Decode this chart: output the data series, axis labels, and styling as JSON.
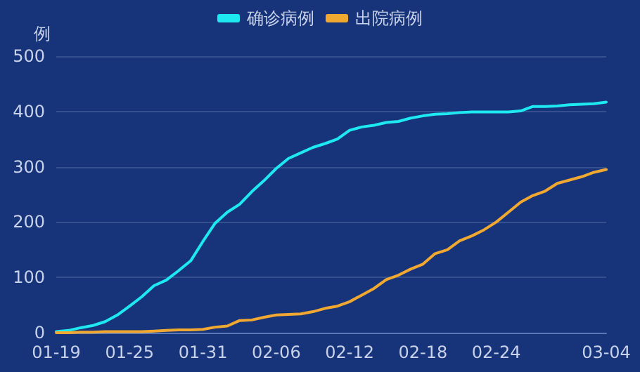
{
  "chart_data": {
    "type": "line",
    "ylabel": "例",
    "categories": [
      "01-19",
      null,
      null,
      null,
      null,
      null,
      "01-25",
      null,
      null,
      null,
      null,
      null,
      "01-31",
      null,
      null,
      null,
      null,
      null,
      "02-06",
      null,
      null,
      null,
      null,
      null,
      "02-12",
      null,
      null,
      null,
      null,
      null,
      "02-18",
      null,
      null,
      null,
      null,
      null,
      "02-24",
      null,
      null,
      null,
      null,
      null,
      null,
      null,
      null,
      "03-04"
    ],
    "series": [
      {
        "name": "确诊病例",
        "color": "#1ee8f0",
        "values": [
          2,
          4,
          9,
          13,
          20,
          32,
          48,
          65,
          85,
          95,
          112,
          130,
          165,
          198,
          218,
          232,
          255,
          275,
          297,
          315,
          325,
          335,
          342,
          350,
          366,
          372,
          375,
          380,
          382,
          388,
          392,
          395,
          396,
          398,
          399,
          399,
          399,
          399,
          401,
          409,
          409,
          410,
          412,
          413,
          414,
          417
        ]
      },
      {
        "name": "出院病例",
        "color": "#f0a830",
        "values": [
          0,
          0,
          1,
          1,
          2,
          2,
          2,
          2,
          3,
          4,
          5,
          5,
          6,
          10,
          12,
          22,
          23,
          28,
          32,
          33,
          34,
          38,
          44,
          48,
          56,
          68,
          80,
          96,
          104,
          115,
          124,
          143,
          150,
          166,
          175,
          186,
          200,
          218,
          236,
          248,
          256,
          270,
          276,
          282,
          290,
          295
        ]
      }
    ],
    "ylim": [
      0,
      500
    ],
    "yticks": [
      0,
      100,
      200,
      300,
      400,
      500
    ],
    "grid": "y",
    "legend": "top",
    "marker": "none",
    "line_style": "solid"
  }
}
